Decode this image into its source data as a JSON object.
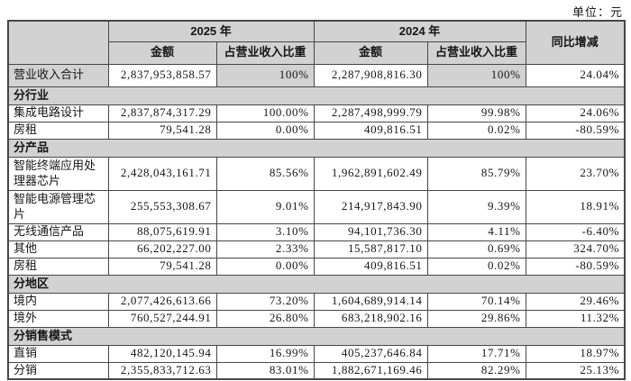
{
  "unit_label": "单位：元",
  "colors": {
    "header_bg": "#d2d2d2",
    "border": "#474747",
    "text": "#161616",
    "page_bg": "#ffffff"
  },
  "table": {
    "header": {
      "year_2025": "2025 年",
      "year_2024": "2024 年",
      "yoy_change": "同比增减",
      "amount": "金额",
      "proportion_of_revenue": "占营业收入比重"
    },
    "rows": [
      {
        "type": "total",
        "label": "营业收入合计",
        "amount_2025": "2,837,953,858.57",
        "pct_2025": "100%",
        "amount_2024": "2,287,908,816.30",
        "pct_2024": "100%",
        "yoy": "24.04%"
      },
      {
        "type": "section",
        "label": "分行业"
      },
      {
        "type": "data",
        "label": "集成电路设计",
        "amount_2025": "2,837,874,317.29",
        "pct_2025": "100.00%",
        "amount_2024": "2,287,498,999.79",
        "pct_2024": "99.98%",
        "yoy": "24.06%"
      },
      {
        "type": "data",
        "label": "房租",
        "amount_2025": "79,541.28",
        "pct_2025": "0.00%",
        "amount_2024": "409,816.51",
        "pct_2024": "0.02%",
        "yoy": "-80.59%"
      },
      {
        "type": "section",
        "label": "分产品"
      },
      {
        "type": "data",
        "tall": true,
        "label": "智能终端应用处理器芯片",
        "amount_2025": "2,428,043,161.71",
        "pct_2025": "85.56%",
        "amount_2024": "1,962,891,602.49",
        "pct_2024": "85.79%",
        "yoy": "23.70%"
      },
      {
        "type": "data",
        "tall": true,
        "label": "智能电源管理芯片",
        "amount_2025": "255,553,308.67",
        "pct_2025": "9.01%",
        "amount_2024": "214,917,843.90",
        "pct_2024": "9.39%",
        "yoy": "18.91%"
      },
      {
        "type": "data",
        "label": "无线通信产品",
        "amount_2025": "88,075,619.91",
        "pct_2025": "3.10%",
        "amount_2024": "94,101,736.30",
        "pct_2024": "4.11%",
        "yoy": "-6.40%"
      },
      {
        "type": "data",
        "label": "其他",
        "amount_2025": "66,202,227.00",
        "pct_2025": "2.33%",
        "amount_2024": "15,587,817.10",
        "pct_2024": "0.69%",
        "yoy": "324.70%"
      },
      {
        "type": "data",
        "label": "房租",
        "amount_2025": "79,541.28",
        "pct_2025": "0.00%",
        "amount_2024": "409,816.51",
        "pct_2024": "0.02%",
        "yoy": "-80.59%"
      },
      {
        "type": "section",
        "label": "分地区"
      },
      {
        "type": "data",
        "label": "境内",
        "amount_2025": "2,077,426,613.66",
        "pct_2025": "73.20%",
        "amount_2024": "1,604,689,914.14",
        "pct_2024": "70.14%",
        "yoy": "29.46%"
      },
      {
        "type": "data",
        "label": "境外",
        "amount_2025": "760,527,244.91",
        "pct_2025": "26.80%",
        "amount_2024": "683,218,902.16",
        "pct_2024": "29.86%",
        "yoy": "11.32%"
      },
      {
        "type": "section",
        "label": "分销售模式"
      },
      {
        "type": "data",
        "label": "直销",
        "amount_2025": "482,120,145.94",
        "pct_2025": "16.99%",
        "amount_2024": "405,237,646.84",
        "pct_2024": "17.71%",
        "yoy": "18.97%"
      },
      {
        "type": "data",
        "label": "分销",
        "amount_2025": "2,355,833,712.63",
        "pct_2025": "83.01%",
        "amount_2024": "1,882,671,169.46",
        "pct_2024": "82.29%",
        "yoy": "25.13%"
      }
    ]
  }
}
